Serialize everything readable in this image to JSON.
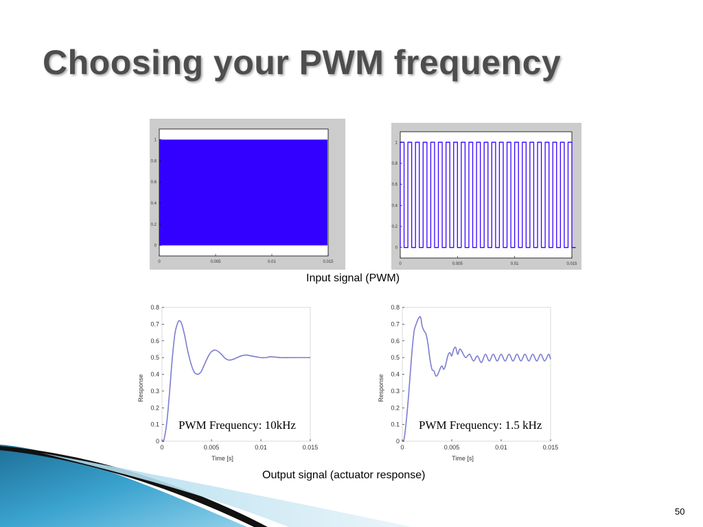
{
  "slide": {
    "title": "Choosing your PWM frequency",
    "input_caption": "Input signal (PWM)",
    "output_caption": "Output signal (actuator response)",
    "page_number": "50"
  },
  "colors": {
    "pwm_blue": "#3300ff",
    "response_line": "#7b7bd0",
    "frame_gray": "#cccccc",
    "title_gray": "#4d4d4d",
    "accent_teal": "#2a8db8"
  },
  "chart_data": [
    {
      "id": "pwm-10khz",
      "type": "line",
      "description_fill": "solid",
      "series": [
        {
          "kind": "square_wave",
          "low": 0,
          "high": 1,
          "frequency_hz": 10000,
          "duty": 0.5
        }
      ],
      "xlim": [
        0,
        0.015
      ],
      "ylim": [
        -0.1,
        1.1
      ],
      "xticks": [
        "0",
        "0.005",
        "0.01",
        "0.015"
      ],
      "yticks": [
        "0",
        "0.2",
        "0.4",
        "0.6",
        "0.8",
        "1"
      ],
      "xlabel": "",
      "ylabel": "",
      "title": "",
      "grid": false
    },
    {
      "id": "pwm-1500hz",
      "type": "line",
      "series": [
        {
          "kind": "square_wave",
          "low": 0,
          "high": 1,
          "frequency_hz": 1500,
          "duty": 0.5
        }
      ],
      "xlim": [
        0,
        0.015
      ],
      "ylim": [
        -0.1,
        1.1
      ],
      "xticks": [
        "0",
        "0.005",
        "0.01",
        "0.015"
      ],
      "yticks": [
        "0",
        "0.2",
        "0.4",
        "0.6",
        "0.8",
        "1"
      ],
      "xlabel": "",
      "ylabel": "",
      "title": "",
      "grid": false
    },
    {
      "id": "response-10khz",
      "type": "line",
      "annotation": "PWM Frequency: 10kHz",
      "xlabel": "Time [s]",
      "ylabel": "Response",
      "xlim": [
        0,
        0.015
      ],
      "ylim": [
        0,
        0.8
      ],
      "xticks": [
        "0",
        "0.005",
        "0.01",
        "0.015"
      ],
      "yticks": [
        "0",
        "0.1",
        "0.2",
        "0.3",
        "0.4",
        "0.5",
        "0.6",
        "0.7",
        "0.8"
      ],
      "grid": false,
      "series": [
        {
          "x": [
            0,
            0.0002,
            0.0005,
            0.0008,
            0.001,
            0.0013,
            0.0016,
            0.0018,
            0.002,
            0.0023,
            0.0026,
            0.003,
            0.0033,
            0.0036,
            0.0038,
            0.004,
            0.0043,
            0.0047,
            0.005,
            0.0053,
            0.0056,
            0.006,
            0.0064,
            0.0068,
            0.0072,
            0.0076,
            0.008,
            0.0085,
            0.009,
            0.0095,
            0.01,
            0.0105,
            0.011,
            0.012,
            0.013,
            0.014,
            0.015
          ],
          "y": [
            0,
            0.01,
            0.12,
            0.32,
            0.47,
            0.64,
            0.71,
            0.72,
            0.7,
            0.63,
            0.54,
            0.45,
            0.41,
            0.4,
            0.405,
            0.42,
            0.46,
            0.51,
            0.535,
            0.545,
            0.54,
            0.52,
            0.495,
            0.485,
            0.49,
            0.5,
            0.51,
            0.515,
            0.51,
            0.505,
            0.5,
            0.5,
            0.505,
            0.5,
            0.5,
            0.5,
            0.5
          ]
        }
      ]
    },
    {
      "id": "response-1500hz",
      "type": "line",
      "annotation": "PWM Frequency: 1.5 kHz",
      "xlabel": "Time [s]",
      "ylabel": "Response",
      "xlim": [
        0,
        0.015
      ],
      "ylim": [
        0,
        0.8
      ],
      "xticks": [
        "0",
        "0.005",
        "0.01",
        "0.015"
      ],
      "yticks": [
        "0",
        "0.1",
        "0.2",
        "0.3",
        "0.4",
        "0.5",
        "0.6",
        "0.7",
        "0.8"
      ],
      "grid": false,
      "series": [
        {
          "x": [
            0,
            0.0002,
            0.0005,
            0.0008,
            0.001,
            0.0012,
            0.0014,
            0.0016,
            0.0017,
            0.0018,
            0.0019,
            0.002,
            0.0022,
            0.0024,
            0.0026,
            0.0028,
            0.003,
            0.0032,
            0.0034,
            0.0036,
            0.0038,
            0.004,
            0.0042,
            0.0044,
            0.0046,
            0.0048,
            0.005,
            0.0052,
            0.0054,
            0.0056,
            0.0058,
            0.006,
            0.0064,
            0.0068,
            0.0072,
            0.0076,
            0.008,
            0.0084,
            0.0088,
            0.0092,
            0.0096,
            0.01,
            0.0104,
            0.0108,
            0.0112,
            0.0116,
            0.012,
            0.0124,
            0.0128,
            0.0132,
            0.0136,
            0.014,
            0.0144,
            0.0148,
            0.015
          ],
          "y": [
            0,
            0.02,
            0.18,
            0.4,
            0.55,
            0.66,
            0.7,
            0.73,
            0.74,
            0.745,
            0.73,
            0.69,
            0.66,
            0.64,
            0.58,
            0.49,
            0.43,
            0.42,
            0.39,
            0.4,
            0.43,
            0.45,
            0.43,
            0.46,
            0.51,
            0.53,
            0.51,
            0.55,
            0.56,
            0.52,
            0.55,
            0.54,
            0.5,
            0.52,
            0.48,
            0.51,
            0.47,
            0.52,
            0.48,
            0.52,
            0.48,
            0.52,
            0.48,
            0.52,
            0.48,
            0.52,
            0.48,
            0.52,
            0.48,
            0.52,
            0.48,
            0.52,
            0.48,
            0.52,
            0.49
          ]
        }
      ]
    }
  ]
}
